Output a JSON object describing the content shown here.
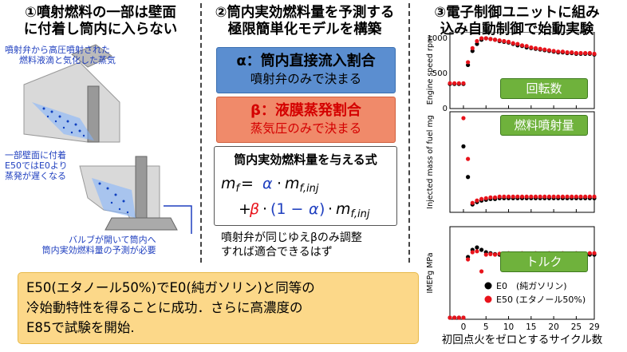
{
  "columns": {
    "left_title_1": "①噴射燃料の一部は壁面",
    "left_title_2": "に付着し筒内に入らない",
    "mid_title_1": "②筒内実効燃料量を予測する",
    "mid_title_2": "極限簡単化モデルを構築",
    "right_title_1": "③電子制御ユニットに組み",
    "right_title_2": "込み自動制御で始動実験"
  },
  "left_notes": {
    "spray_1": "噴射弁から高圧噴射された",
    "spray_2": "燃料液滴と気化した蒸気",
    "wall_1": "一部壁面に付着",
    "wall_2": "E50ではE0より",
    "wall_3": "蒸発が遅くなる",
    "valve_1": "バルブが開いて筒内へ",
    "valve_2": "筒内実効燃料量の予測が必要"
  },
  "model": {
    "alpha_title": "α：筒内直接流入割合",
    "alpha_sub": "噴射弁のみで決まる",
    "beta_title": "β：液膜蒸発割合",
    "beta_sub": "蒸気圧のみで決まる",
    "formula_title": "筒内実効燃料量を与える式",
    "note_1": "噴射弁が同じゆえβのみ調整",
    "note_2": "すれば適合できるはず"
  },
  "conclusion": {
    "line_1": "E50(エタノール50%)でE0(純ガソリン)と同等の",
    "line_2": "冷始動特性を得ることに成功．さらに高濃度の",
    "line_3": "E85で試験を開始."
  },
  "colors": {
    "alpha_box": "#5b8ed0",
    "beta_box": "#f08a6a",
    "badge": "#6fb23c",
    "e0": "#000000",
    "e50": "#e8131b",
    "conclusion_box": "#fcd889"
  },
  "chart_data": {
    "type": "scatter",
    "x_label": "初回点火をゼロとするサイクル数",
    "x_ticks": [
      "0",
      "5",
      "10",
      "15",
      "20",
      "25",
      "29"
    ],
    "x_range": [
      -3,
      29
    ],
    "panels": [
      {
        "ylabel": "Engine speed rpm",
        "badge": "回転数",
        "y_range": [
          0,
          1000
        ],
        "y_ticks": [
          "1000",
          "500",
          "0"
        ],
        "E0": [
          [
            -3,
            350
          ],
          [
            -2,
            350
          ],
          [
            -1,
            350
          ],
          [
            0,
            350
          ],
          [
            1,
            620
          ],
          [
            2,
            820
          ],
          [
            3,
            920
          ],
          [
            4,
            980
          ],
          [
            5,
            1000
          ],
          [
            6,
            990
          ],
          [
            7,
            980
          ],
          [
            8,
            960
          ],
          [
            9,
            950
          ],
          [
            10,
            940
          ],
          [
            11,
            920
          ],
          [
            12,
            900
          ],
          [
            13,
            890
          ],
          [
            14,
            870
          ],
          [
            15,
            860
          ],
          [
            16,
            850
          ],
          [
            17,
            840
          ],
          [
            18,
            830
          ],
          [
            19,
            820
          ],
          [
            20,
            810
          ],
          [
            21,
            800
          ],
          [
            22,
            800
          ],
          [
            23,
            790
          ],
          [
            24,
            790
          ],
          [
            25,
            780
          ],
          [
            26,
            780
          ],
          [
            27,
            780
          ],
          [
            28,
            780
          ],
          [
            29,
            770
          ]
        ],
        "E50": [
          [
            -3,
            360
          ],
          [
            -2,
            360
          ],
          [
            -1,
            360
          ],
          [
            0,
            360
          ],
          [
            1,
            660
          ],
          [
            2,
            860
          ],
          [
            3,
            960
          ],
          [
            4,
            1000
          ],
          [
            5,
            1000
          ],
          [
            6,
            990
          ],
          [
            7,
            980
          ],
          [
            8,
            970
          ],
          [
            9,
            960
          ],
          [
            10,
            950
          ],
          [
            11,
            930
          ],
          [
            12,
            920
          ],
          [
            13,
            900
          ],
          [
            14,
            890
          ],
          [
            15,
            870
          ],
          [
            16,
            860
          ],
          [
            17,
            850
          ],
          [
            18,
            840
          ],
          [
            19,
            830
          ],
          [
            20,
            820
          ],
          [
            21,
            810
          ],
          [
            22,
            810
          ],
          [
            23,
            800
          ],
          [
            24,
            800
          ],
          [
            25,
            790
          ],
          [
            26,
            790
          ],
          [
            27,
            790
          ],
          [
            28,
            790
          ],
          [
            29,
            780
          ]
        ]
      },
      {
        "ylabel": "Injected mass of fuel mg",
        "badge": "燃料噴射量",
        "y_range": [
          0,
          120
        ],
        "y_ticks": [],
        "E0": [
          [
            0,
            84
          ],
          [
            1,
            45
          ],
          [
            2,
            10
          ],
          [
            3,
            13
          ],
          [
            4,
            15
          ],
          [
            5,
            16
          ],
          [
            6,
            17
          ],
          [
            7,
            17
          ],
          [
            8,
            18
          ],
          [
            9,
            18
          ],
          [
            10,
            18
          ],
          [
            11,
            18
          ],
          [
            12,
            18
          ],
          [
            13,
            18
          ],
          [
            14,
            18
          ],
          [
            15,
            18
          ],
          [
            16,
            18
          ],
          [
            17,
            18
          ],
          [
            18,
            18
          ],
          [
            19,
            18
          ],
          [
            20,
            18
          ],
          [
            21,
            18
          ],
          [
            22,
            18
          ],
          [
            23,
            18
          ],
          [
            24,
            18
          ],
          [
            25,
            18
          ],
          [
            26,
            18
          ],
          [
            27,
            18
          ],
          [
            28,
            18
          ],
          [
            29,
            18
          ]
        ],
        "E50": [
          [
            0,
            120
          ],
          [
            1,
            68
          ],
          [
            2,
            12
          ],
          [
            3,
            15
          ],
          [
            4,
            17
          ],
          [
            5,
            18
          ],
          [
            6,
            19
          ],
          [
            7,
            19
          ],
          [
            8,
            20
          ],
          [
            9,
            20
          ],
          [
            10,
            20
          ],
          [
            11,
            20
          ],
          [
            12,
            20
          ],
          [
            13,
            20
          ],
          [
            14,
            20
          ],
          [
            15,
            20
          ],
          [
            16,
            20
          ],
          [
            17,
            20
          ],
          [
            18,
            20
          ],
          [
            19,
            20
          ],
          [
            20,
            20
          ],
          [
            21,
            20
          ],
          [
            22,
            20
          ],
          [
            23,
            20
          ],
          [
            24,
            20
          ],
          [
            25,
            20
          ],
          [
            26,
            20
          ],
          [
            27,
            20
          ],
          [
            28,
            20
          ],
          [
            29,
            20
          ]
        ]
      },
      {
        "ylabel": "IMEPg MPa",
        "badge": "トルク",
        "y_range": [
          0,
          1.8
        ],
        "y_ticks": [],
        "E0": [
          [
            -3,
            0
          ],
          [
            -2,
            0
          ],
          [
            -1,
            0
          ],
          [
            0,
            0
          ],
          [
            1,
            1.3
          ],
          [
            2,
            1.45
          ],
          [
            3,
            1.5
          ],
          [
            4,
            1.45
          ],
          [
            5,
            1.4
          ],
          [
            6,
            1.38
          ],
          [
            7,
            1.36
          ],
          [
            8,
            1.35
          ],
          [
            9,
            1.36
          ],
          [
            10,
            1.35
          ],
          [
            11,
            1.36
          ],
          [
            12,
            1.35
          ],
          [
            13,
            1.36
          ],
          [
            14,
            1.35
          ],
          [
            15,
            1.35
          ],
          [
            16,
            1.36
          ],
          [
            17,
            1.35
          ],
          [
            18,
            1.36
          ],
          [
            19,
            1.35
          ],
          [
            20,
            1.36
          ],
          [
            21,
            1.35
          ],
          [
            22,
            1.35
          ],
          [
            23,
            1.36
          ],
          [
            24,
            1.35
          ],
          [
            25,
            1.35
          ],
          [
            26,
            1.36
          ],
          [
            27,
            1.35
          ],
          [
            28,
            1.35
          ],
          [
            29,
            1.35
          ]
        ],
        "E50": [
          [
            -3,
            0
          ],
          [
            -2,
            0
          ],
          [
            -1,
            0
          ],
          [
            0,
            0
          ],
          [
            1,
            1.25
          ],
          [
            2,
            1.4
          ],
          [
            3,
            1.42
          ],
          [
            4,
            1.0
          ],
          [
            5,
            1.35
          ],
          [
            6,
            1.36
          ],
          [
            7,
            1.35
          ],
          [
            8,
            1.37
          ],
          [
            9,
            1.36
          ],
          [
            10,
            1.38
          ],
          [
            11,
            1.37
          ],
          [
            12,
            1.36
          ],
          [
            13,
            1.38
          ],
          [
            14,
            1.37
          ],
          [
            15,
            1.36
          ],
          [
            16,
            1.38
          ],
          [
            17,
            1.37
          ],
          [
            18,
            1.36
          ],
          [
            19,
            1.38
          ],
          [
            20,
            1.37
          ],
          [
            21,
            1.36
          ],
          [
            22,
            1.38
          ],
          [
            23,
            1.37
          ],
          [
            24,
            1.36
          ],
          [
            25,
            1.38
          ],
          [
            26,
            1.37
          ],
          [
            27,
            1.36
          ],
          [
            28,
            1.38
          ],
          [
            29,
            1.38
          ]
        ]
      }
    ],
    "series": [
      {
        "name": "E0　(純ガソリン)",
        "color": "#000000"
      },
      {
        "name": "E50 (エタノール50%)",
        "color": "#e8131b"
      }
    ]
  }
}
